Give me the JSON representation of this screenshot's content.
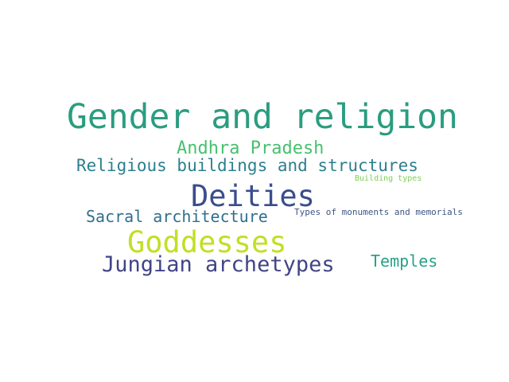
{
  "words": [
    {
      "text": "Gender and religion",
      "color": "#2a9d7f"
    },
    {
      "text": "Andhra Pradesh",
      "color": "#47c16e"
    },
    {
      "text": "Religious buildings and structures",
      "color": "#2c7f8e"
    },
    {
      "text": "Building types",
      "color": "#7ad151"
    },
    {
      "text": "Deities",
      "color": "#3b4d8c"
    },
    {
      "text": "Sacral architecture",
      "color": "#2f6f8e"
    },
    {
      "text": "Types of monuments and memorials",
      "color": "#3e5487"
    },
    {
      "text": "Goddesses",
      "color": "#c2df23"
    },
    {
      "text": "Temples",
      "color": "#27a08a"
    },
    {
      "text": "Jungian archetypes",
      "color": "#414487"
    }
  ]
}
